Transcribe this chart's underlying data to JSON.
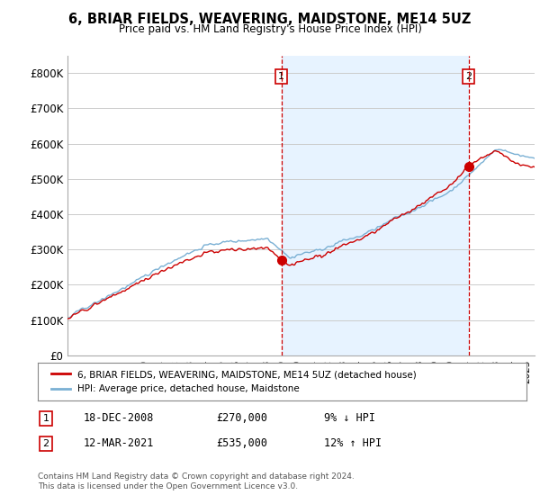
{
  "title": "6, BRIAR FIELDS, WEAVERING, MAIDSTONE, ME14 5UZ",
  "subtitle": "Price paid vs. HM Land Registry's House Price Index (HPI)",
  "ylim": [
    0,
    850000
  ],
  "yticks": [
    0,
    100000,
    200000,
    300000,
    400000,
    500000,
    600000,
    700000,
    800000
  ],
  "ytick_labels": [
    "£0",
    "£100K",
    "£200K",
    "£300K",
    "£400K",
    "£500K",
    "£600K",
    "£700K",
    "£800K"
  ],
  "xlim_start": 1995.0,
  "xlim_end": 2025.5,
  "line_color_property": "#cc0000",
  "line_color_hpi": "#7ab0d4",
  "shade_color": "#ddeeff",
  "marker1_x": 2008.96,
  "marker1_y": 270000,
  "marker2_x": 2021.2,
  "marker2_y": 535000,
  "legend_property": "6, BRIAR FIELDS, WEAVERING, MAIDSTONE, ME14 5UZ (detached house)",
  "legend_hpi": "HPI: Average price, detached house, Maidstone",
  "annotation1_label": "1",
  "annotation1_date": "18-DEC-2008",
  "annotation1_price": "£270,000",
  "annotation1_hpi": "9% ↓ HPI",
  "annotation2_label": "2",
  "annotation2_date": "12-MAR-2021",
  "annotation2_price": "£535,000",
  "annotation2_hpi": "12% ↑ HPI",
  "footer": "Contains HM Land Registry data © Crown copyright and database right 2024.\nThis data is licensed under the Open Government Licence v3.0.",
  "background_color": "#ffffff",
  "grid_color": "#cccccc"
}
